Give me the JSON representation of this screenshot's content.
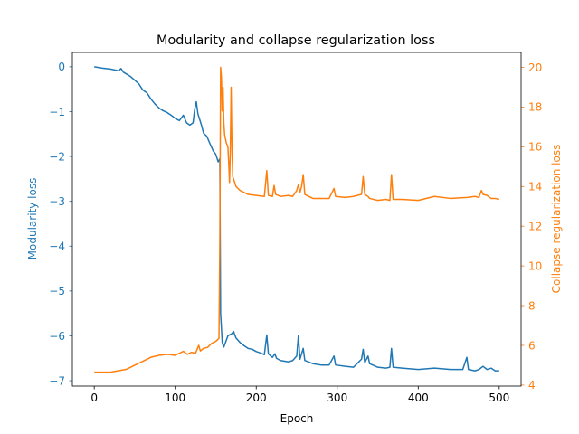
{
  "chart_data": {
    "type": "line",
    "title": "Modularity and collapse regularization loss",
    "xlabel": "Epoch",
    "xlim": [
      -27,
      527
    ],
    "x_ticks": [
      0,
      100,
      200,
      300,
      400,
      500
    ],
    "y_left": {
      "label": "Modularity loss",
      "color": "#1f77b4",
      "ylim": [
        -7.12,
        0.32
      ],
      "ticks": [
        0,
        -1,
        -2,
        -3,
        -4,
        -5,
        -6,
        -7
      ]
    },
    "y_right": {
      "label": "Collapse regularization loss",
      "color": "#ff7f0e",
      "ylim": [
        3.95,
        20.75
      ],
      "ticks": [
        4,
        6,
        8,
        10,
        12,
        14,
        16,
        18,
        20
      ]
    },
    "series": [
      {
        "axis": "left",
        "color": "#1f77b4",
        "points": [
          [
            0,
            0
          ],
          [
            10,
            -0.03
          ],
          [
            20,
            -0.05
          ],
          [
            30,
            -0.09
          ],
          [
            33,
            -0.04
          ],
          [
            36,
            -0.12
          ],
          [
            45,
            -0.22
          ],
          [
            55,
            -0.38
          ],
          [
            60,
            -0.52
          ],
          [
            65,
            -0.58
          ],
          [
            70,
            -0.72
          ],
          [
            75,
            -0.83
          ],
          [
            80,
            -0.92
          ],
          [
            85,
            -0.98
          ],
          [
            90,
            -1.02
          ],
          [
            95,
            -1.08
          ],
          [
            100,
            -1.15
          ],
          [
            105,
            -1.2
          ],
          [
            110,
            -1.08
          ],
          [
            114,
            -1.25
          ],
          [
            118,
            -1.3
          ],
          [
            122,
            -1.25
          ],
          [
            124,
            -0.95
          ],
          [
            126,
            -0.78
          ],
          [
            128,
            -1.05
          ],
          [
            132,
            -1.28
          ],
          [
            135,
            -1.48
          ],
          [
            139,
            -1.55
          ],
          [
            143,
            -1.72
          ],
          [
            147,
            -1.88
          ],
          [
            150,
            -1.95
          ],
          [
            153,
            -2.12
          ],
          [
            155,
            -2.05
          ],
          [
            156,
            -5.5
          ],
          [
            157,
            -5.82
          ],
          [
            158,
            -6.15
          ],
          [
            160,
            -6.25
          ],
          [
            163,
            -6.1
          ],
          [
            165,
            -6.0
          ],
          [
            170,
            -5.95
          ],
          [
            172,
            -5.9
          ],
          [
            175,
            -6.05
          ],
          [
            180,
            -6.15
          ],
          [
            185,
            -6.22
          ],
          [
            190,
            -6.28
          ],
          [
            195,
            -6.3
          ],
          [
            200,
            -6.35
          ],
          [
            205,
            -6.38
          ],
          [
            210,
            -6.42
          ],
          [
            213,
            -5.98
          ],
          [
            215,
            -6.4
          ],
          [
            220,
            -6.48
          ],
          [
            223,
            -6.4
          ],
          [
            225,
            -6.5
          ],
          [
            230,
            -6.55
          ],
          [
            240,
            -6.58
          ],
          [
            245,
            -6.55
          ],
          [
            250,
            -6.45
          ],
          [
            252,
            -6.0
          ],
          [
            254,
            -6.52
          ],
          [
            258,
            -6.28
          ],
          [
            260,
            -6.55
          ],
          [
            270,
            -6.62
          ],
          [
            280,
            -6.65
          ],
          [
            290,
            -6.65
          ],
          [
            296,
            -6.45
          ],
          [
            298,
            -6.65
          ],
          [
            310,
            -6.68
          ],
          [
            320,
            -6.7
          ],
          [
            330,
            -6.52
          ],
          [
            332,
            -6.3
          ],
          [
            334,
            -6.6
          ],
          [
            338,
            -6.45
          ],
          [
            340,
            -6.62
          ],
          [
            350,
            -6.7
          ],
          [
            360,
            -6.72
          ],
          [
            365,
            -6.7
          ],
          [
            367,
            -6.28
          ],
          [
            369,
            -6.7
          ],
          [
            380,
            -6.72
          ],
          [
            400,
            -6.75
          ],
          [
            420,
            -6.72
          ],
          [
            440,
            -6.75
          ],
          [
            455,
            -6.75
          ],
          [
            460,
            -6.48
          ],
          [
            462,
            -6.75
          ],
          [
            470,
            -6.78
          ],
          [
            475,
            -6.75
          ],
          [
            480,
            -6.68
          ],
          [
            485,
            -6.75
          ],
          [
            490,
            -6.72
          ],
          [
            495,
            -6.78
          ],
          [
            500,
            -6.78
          ]
        ]
      },
      {
        "axis": "right",
        "color": "#ff7f0e",
        "points": [
          [
            0,
            4.65
          ],
          [
            20,
            4.65
          ],
          [
            40,
            4.8
          ],
          [
            50,
            5.0
          ],
          [
            60,
            5.2
          ],
          [
            70,
            5.4
          ],
          [
            80,
            5.5
          ],
          [
            90,
            5.55
          ],
          [
            100,
            5.5
          ],
          [
            110,
            5.7
          ],
          [
            115,
            5.55
          ],
          [
            120,
            5.65
          ],
          [
            125,
            5.6
          ],
          [
            129,
            6.0
          ],
          [
            131,
            5.72
          ],
          [
            135,
            5.85
          ],
          [
            140,
            5.9
          ],
          [
            145,
            6.1
          ],
          [
            150,
            6.2
          ],
          [
            154,
            6.35
          ],
          [
            155,
            11.0
          ],
          [
            156,
            20.0
          ],
          [
            157,
            19.5
          ],
          [
            158,
            17.8
          ],
          [
            159,
            19.0
          ],
          [
            160,
            17.2
          ],
          [
            161,
            16.6
          ],
          [
            163,
            16.2
          ],
          [
            165,
            16.0
          ],
          [
            166,
            15.2
          ],
          [
            167,
            14.2
          ],
          [
            168,
            15.8
          ],
          [
            169,
            19.0
          ],
          [
            170,
            16.0
          ],
          [
            171,
            14.5
          ],
          [
            175,
            14.0
          ],
          [
            180,
            13.8
          ],
          [
            190,
            13.6
          ],
          [
            200,
            13.55
          ],
          [
            210,
            13.5
          ],
          [
            213,
            14.8
          ],
          [
            215,
            13.55
          ],
          [
            220,
            13.5
          ],
          [
            222,
            14.05
          ],
          [
            224,
            13.6
          ],
          [
            230,
            13.5
          ],
          [
            240,
            13.55
          ],
          [
            245,
            13.5
          ],
          [
            250,
            13.8
          ],
          [
            252,
            14.1
          ],
          [
            254,
            13.7
          ],
          [
            256,
            14.0
          ],
          [
            258,
            14.6
          ],
          [
            260,
            13.6
          ],
          [
            270,
            13.4
          ],
          [
            280,
            13.4
          ],
          [
            290,
            13.4
          ],
          [
            296,
            13.9
          ],
          [
            298,
            13.5
          ],
          [
            310,
            13.45
          ],
          [
            320,
            13.5
          ],
          [
            330,
            13.6
          ],
          [
            332,
            14.5
          ],
          [
            334,
            13.6
          ],
          [
            338,
            13.5
          ],
          [
            340,
            13.4
          ],
          [
            350,
            13.3
          ],
          [
            360,
            13.35
          ],
          [
            365,
            13.3
          ],
          [
            367,
            14.6
          ],
          [
            369,
            13.35
          ],
          [
            380,
            13.35
          ],
          [
            400,
            13.3
          ],
          [
            420,
            13.5
          ],
          [
            440,
            13.4
          ],
          [
            460,
            13.45
          ],
          [
            470,
            13.5
          ],
          [
            475,
            13.45
          ],
          [
            478,
            13.8
          ],
          [
            480,
            13.6
          ],
          [
            485,
            13.55
          ],
          [
            490,
            13.4
          ],
          [
            495,
            13.4
          ],
          [
            500,
            13.35
          ]
        ]
      }
    ]
  }
}
